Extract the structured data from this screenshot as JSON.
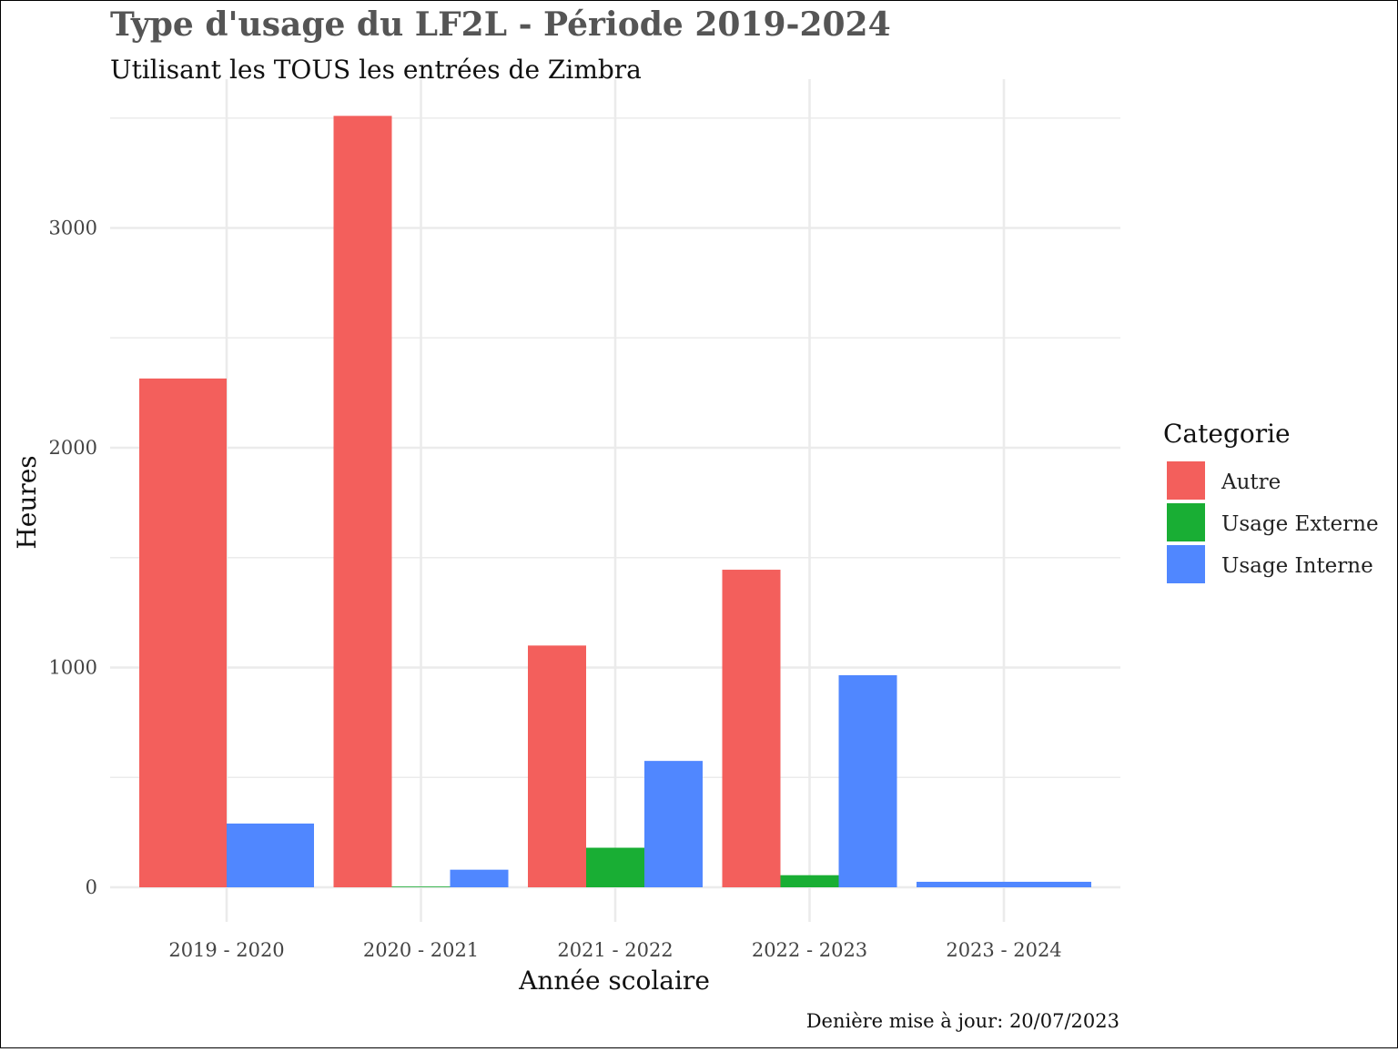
{
  "chart_data": {
    "type": "bar",
    "title": "Type d'usage du LF2L - Période 2019-2024",
    "subtitle": "Utilisant les TOUS les entrées de Zimbra",
    "xlabel": "Année scolaire",
    "ylabel": "Heures",
    "caption": "Denière mise à jour: 20/07/2023",
    "categories": [
      "2019 - 2020",
      "2020 - 2021",
      "2021 - 2022",
      "2022 - 2023",
      "2023 - 2024"
    ],
    "ylim": [
      -50,
      3680
    ],
    "yticks": [
      0,
      1000,
      2000,
      3000
    ],
    "grid": true,
    "legend": {
      "title": "Categorie",
      "position": "right"
    },
    "series": [
      {
        "name": "Autre",
        "color": "#F35F5C",
        "values": [
          2315,
          3510,
          1100,
          1445,
          null
        ]
      },
      {
        "name": "Usage Externe",
        "color": "#19AE34",
        "values": [
          null,
          2,
          180,
          55,
          null
        ]
      },
      {
        "name": "Usage Interne",
        "color": "#5087FF",
        "values": [
          290,
          80,
          575,
          965,
          25
        ]
      }
    ]
  }
}
